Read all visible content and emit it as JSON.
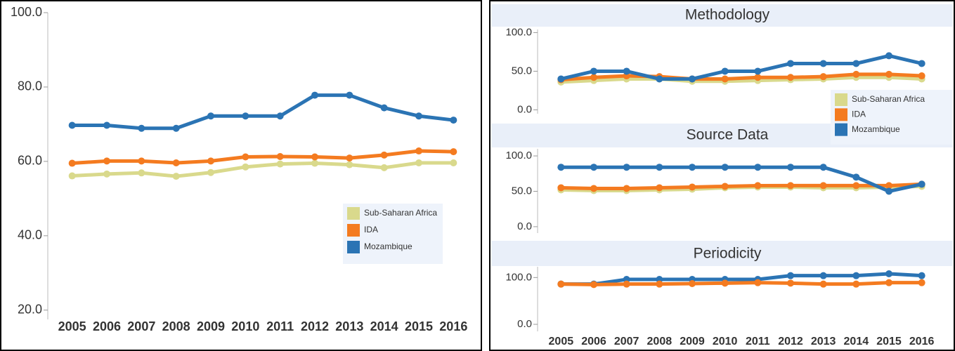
{
  "chart_data": [
    {
      "type": "line",
      "categories": [
        "2005",
        "2006",
        "2007",
        "2008",
        "2009",
        "2010",
        "2011",
        "2012",
        "2013",
        "2014",
        "2015",
        "2016"
      ],
      "ylim": [
        17.5,
        100
      ],
      "yticks": [
        {
          "value": 20,
          "label": "20.0"
        },
        {
          "value": 40,
          "label": "40.0"
        },
        {
          "value": 60,
          "label": "60.0"
        },
        {
          "value": 80,
          "label": "80.0"
        },
        {
          "value": 100,
          "label": "100.0"
        }
      ],
      "legend": "lower right",
      "series": [
        {
          "name": "Sub-Saharan Africa",
          "color": "#d9d98c",
          "values": [
            56.1,
            56.6,
            56.9,
            56.0,
            57.0,
            58.5,
            59.3,
            59.5,
            59.1,
            58.3,
            59.6,
            59.6
          ]
        },
        {
          "name": "IDA",
          "color": "#f47b20",
          "values": [
            59.5,
            60.1,
            60.1,
            59.6,
            60.1,
            61.2,
            61.3,
            61.2,
            60.9,
            61.7,
            62.8,
            62.6
          ]
        },
        {
          "name": "Mozambique",
          "color": "#2b74b4",
          "values": [
            69.7,
            69.7,
            68.9,
            68.9,
            72.2,
            72.2,
            72.2,
            77.8,
            77.8,
            74.4,
            72.2,
            71.1
          ]
        }
      ]
    },
    {
      "type": "line",
      "title": "Methodology",
      "ylim": [
        -5,
        104
      ],
      "yticks": [
        {
          "value": 0,
          "label": "0.0"
        },
        {
          "value": 50,
          "label": "50.0"
        },
        {
          "value": 100,
          "label": "100.0"
        }
      ],
      "legend": "right",
      "series": [
        {
          "name": "Sub-Saharan Africa",
          "color": "#d9d98c",
          "values": [
            36,
            38,
            40,
            40,
            37,
            37,
            38,
            39,
            40,
            42,
            42,
            40
          ]
        },
        {
          "name": "IDA",
          "color": "#f47b20",
          "values": [
            39,
            42,
            44,
            43,
            40,
            40,
            42,
            42,
            43,
            46,
            46,
            44
          ]
        },
        {
          "name": "Mozambique",
          "color": "#2b74b4",
          "values": [
            40,
            50,
            50,
            40,
            40,
            50,
            50,
            60,
            60,
            60,
            70,
            60
          ]
        }
      ]
    },
    {
      "type": "line",
      "title": "Source Data",
      "ylim": [
        -9,
        110
      ],
      "yticks": [
        {
          "value": 0,
          "label": "0.0"
        },
        {
          "value": 50,
          "label": "50.0"
        },
        {
          "value": 100,
          "label": "100.0"
        }
      ],
      "series": [
        {
          "color": "#d9d98c",
          "values": [
            52,
            51,
            51,
            52,
            53,
            55,
            56,
            56,
            55,
            55,
            56,
            57
          ]
        },
        {
          "color": "#f47b20",
          "values": [
            55,
            54,
            54,
            55,
            56,
            57,
            58,
            58,
            58,
            58,
            58,
            60
          ]
        },
        {
          "color": "#2b74b4",
          "values": [
            84,
            84,
            84,
            84,
            84,
            84,
            84,
            84,
            84,
            70,
            50,
            60
          ]
        }
      ]
    },
    {
      "type": "line",
      "title": "Periodicity",
      "categories": [
        "2005",
        "2006",
        "2007",
        "2008",
        "2009",
        "2010",
        "2011",
        "2012",
        "2013",
        "2014",
        "2015",
        "2016"
      ],
      "ylim": [
        -15,
        123
      ],
      "yticks": [
        {
          "value": 0,
          "label": "0.0"
        },
        {
          "value": 100,
          "label": "100.0"
        }
      ],
      "series": [
        {
          "color": "#2b74b4",
          "values": [
            86,
            86,
            96,
            96,
            96,
            96,
            96,
            104,
            104,
            104,
            108,
            104
          ]
        },
        {
          "color": "#f47b20",
          "values": [
            86,
            85,
            86,
            86,
            87,
            88,
            89,
            88,
            86,
            86,
            89,
            89
          ]
        }
      ]
    }
  ]
}
